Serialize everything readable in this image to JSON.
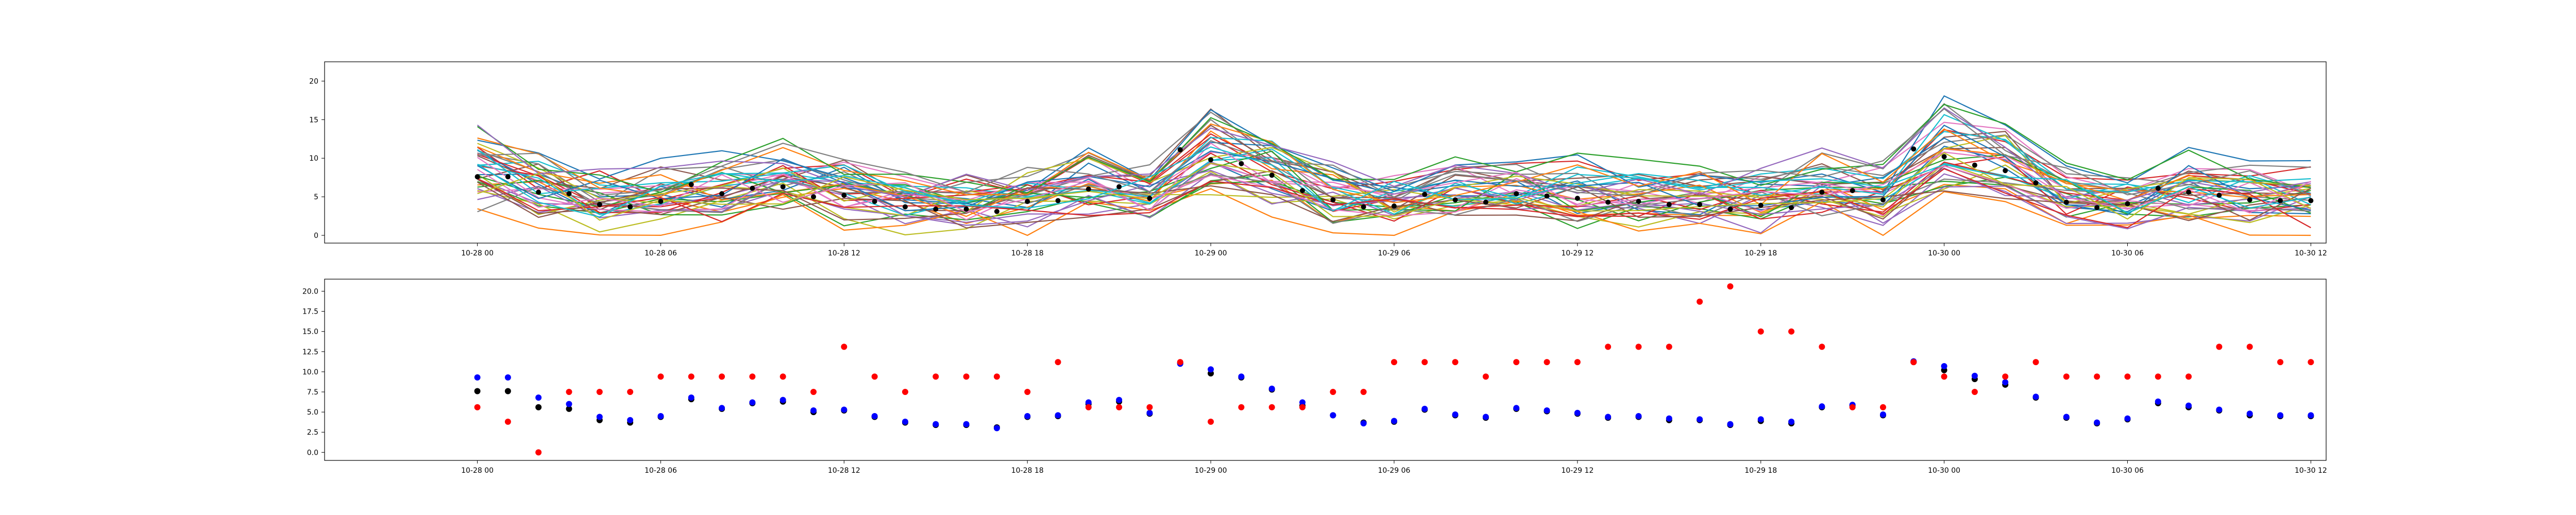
{
  "chart_data": [
    {
      "type": "line",
      "description": "Ensemble of many forecast member lines with a black-dot series overlay",
      "x_start": "10-28 00",
      "x_tick_labels": [
        "10-28 00",
        "10-28 06",
        "10-28 12",
        "10-28 18",
        "10-29 00",
        "10-29 06",
        "10-29 12",
        "10-29 18",
        "10-30 00",
        "10-30 06",
        "10-30 12"
      ],
      "y_tick_labels": [
        "0",
        "5",
        "10",
        "15",
        "20"
      ],
      "ylim": [
        -1,
        22.5
      ],
      "xlim_hours": [
        -5,
        60.5
      ],
      "grid": false,
      "line_palette": [
        "#1f77b4",
        "#ff7f0e",
        "#2ca02c",
        "#d62728",
        "#9467bd",
        "#8c564b",
        "#e377c2",
        "#7f7f7f",
        "#bcbd22",
        "#17becf"
      ],
      "member_count": 40,
      "dot_series": {
        "color": "#000000",
        "x_hours": [
          0,
          1,
          2,
          3,
          4,
          5,
          6,
          7,
          8,
          9,
          10,
          11,
          12,
          13,
          14,
          15,
          16,
          17,
          18,
          19,
          20,
          21,
          22,
          23,
          24,
          25,
          26,
          27,
          28,
          29,
          30,
          31,
          32,
          33,
          34,
          35,
          36,
          37,
          38,
          39,
          40,
          41,
          42,
          43,
          44,
          45,
          46,
          47,
          48,
          49,
          50,
          51,
          52,
          53,
          54,
          55,
          56,
          57,
          58,
          59,
          60
        ],
        "values": [
          7.6,
          7.6,
          5.6,
          5.4,
          4.0,
          3.7,
          4.4,
          6.6,
          5.4,
          6.1,
          6.3,
          5.0,
          5.2,
          4.4,
          3.7,
          3.4,
          3.4,
          3.1,
          4.4,
          4.5,
          6.0,
          6.3,
          4.8,
          11.1,
          9.8,
          9.3,
          7.8,
          5.8,
          4.6,
          3.7,
          3.8,
          5.3,
          4.6,
          4.3,
          5.4,
          5.1,
          4.8,
          4.3,
          4.4,
          4.0,
          4.0,
          3.4,
          3.9,
          3.6,
          5.6,
          5.8,
          4.6,
          11.2,
          10.2,
          9.1,
          8.4,
          6.8,
          4.3,
          3.6,
          4.1,
          6.1,
          5.6,
          5.2,
          4.6,
          4.5,
          4.5
        ]
      }
    },
    {
      "type": "scatter",
      "x_tick_labels": [
        "10-28 00",
        "10-28 06",
        "10-28 12",
        "10-28 18",
        "10-29 00",
        "10-29 06",
        "10-29 12",
        "10-29 18",
        "10-30 00",
        "10-30 06",
        "10-30 12"
      ],
      "y_tick_labels": [
        "0.0",
        "2.5",
        "5.0",
        "7.5",
        "10.0",
        "12.5",
        "15.0",
        "17.5",
        "20.0"
      ],
      "ylim": [
        -1.0,
        21.5
      ],
      "xlim_hours": [
        -5,
        60.5
      ],
      "grid": false,
      "x_hours": [
        0,
        1,
        2,
        3,
        4,
        5,
        6,
        7,
        8,
        9,
        10,
        11,
        12,
        13,
        14,
        15,
        16,
        17,
        18,
        19,
        20,
        21,
        22,
        23,
        24,
        25,
        26,
        27,
        28,
        29,
        30,
        31,
        32,
        33,
        34,
        35,
        36,
        37,
        38,
        39,
        40,
        41,
        42,
        43,
        44,
        45,
        46,
        47,
        48,
        49,
        50,
        51,
        52,
        53,
        54,
        55,
        56,
        57,
        58,
        59,
        60
      ],
      "series": [
        {
          "color": "#000000",
          "values": [
            7.6,
            7.6,
            5.6,
            5.4,
            4.0,
            3.7,
            4.4,
            6.6,
            5.4,
            6.1,
            6.3,
            5.0,
            5.2,
            4.4,
            3.7,
            3.4,
            3.4,
            3.1,
            4.4,
            4.5,
            6.0,
            6.3,
            4.8,
            11.1,
            9.8,
            9.3,
            7.8,
            5.8,
            4.6,
            3.7,
            3.8,
            5.3,
            4.6,
            4.3,
            5.4,
            5.1,
            4.8,
            4.3,
            4.4,
            4.0,
            4.0,
            3.4,
            3.9,
            3.6,
            5.6,
            5.8,
            4.6,
            11.2,
            10.2,
            9.1,
            8.4,
            6.8,
            4.3,
            3.6,
            4.1,
            6.1,
            5.6,
            5.2,
            4.6,
            4.5,
            4.5
          ]
        },
        {
          "color": "#0000ff",
          "values": [
            9.3,
            9.3,
            6.8,
            6.0,
            4.4,
            4.0,
            4.5,
            6.8,
            5.5,
            6.2,
            6.5,
            5.2,
            5.3,
            4.5,
            3.8,
            3.5,
            3.5,
            3.0,
            4.5,
            4.6,
            6.2,
            6.5,
            4.9,
            11.0,
            10.3,
            9.4,
            7.9,
            6.2,
            4.6,
            3.6,
            3.9,
            5.4,
            4.7,
            4.4,
            5.5,
            5.2,
            4.9,
            4.4,
            4.5,
            4.2,
            4.1,
            3.5,
            4.1,
            3.8,
            5.7,
            5.9,
            4.7,
            11.3,
            10.7,
            9.5,
            8.7,
            6.9,
            4.4,
            3.7,
            4.2,
            6.3,
            5.8,
            5.3,
            4.8,
            4.6,
            4.6
          ]
        },
        {
          "color": "#ff0000",
          "values": [
            5.6,
            3.8,
            0.0,
            7.5,
            7.5,
            7.5,
            9.4,
            9.4,
            9.4,
            9.4,
            9.4,
            7.5,
            13.1,
            9.4,
            7.5,
            9.4,
            9.4,
            9.4,
            7.5,
            11.2,
            5.6,
            5.6,
            5.6,
            11.2,
            3.8,
            5.6,
            5.6,
            5.6,
            7.5,
            7.5,
            11.2,
            11.2,
            11.2,
            9.4,
            11.2,
            11.2,
            11.2,
            13.1,
            13.1,
            13.1,
            18.7,
            20.6,
            15.0,
            15.0,
            13.1,
            5.6,
            5.6,
            11.2,
            9.4,
            7.5,
            9.4,
            11.2,
            9.4,
            9.4,
            9.4,
            9.4,
            9.4,
            13.1,
            13.1,
            11.2,
            11.2
          ]
        }
      ]
    }
  ]
}
